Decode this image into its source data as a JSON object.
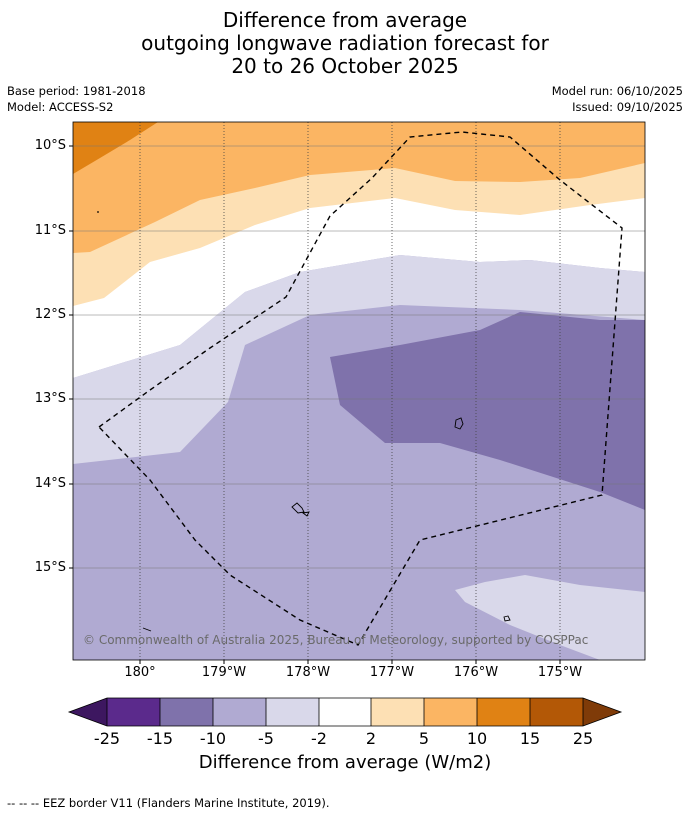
{
  "title": {
    "line1": "Difference from average",
    "line2": "outgoing longwave radiation forecast for",
    "line3": "20 to 26 October 2025"
  },
  "meta": {
    "base_period": "Base period: 1981-2018",
    "model": "Model: ACCESS-S2",
    "model_run": "Model run: 06/10/2025",
    "issued": "Issued: 09/10/2025"
  },
  "map": {
    "lat_labels": [
      "10°S",
      "11°S",
      "12°S",
      "13°S",
      "14°S",
      "15°S"
    ],
    "lon_labels": [
      "180°",
      "179°W",
      "178°W",
      "177°W",
      "176°W",
      "175°W"
    ],
    "copyright": "© Commonwealth of Australia 2025, Bureau of Meteorology, supported by COSPPac",
    "colors": {
      "n25": "#3d1760",
      "n15_25": "#5b2a8c",
      "n10_15": "#7f72ab",
      "n5_10": "#b0aad2",
      "n2_5": "#d9d8ea",
      "zero": "#ffffff",
      "p2_5": "#fde0b4",
      "p5_10": "#fbb563",
      "p10_15": "#e08214",
      "p15_25": "#b35806",
      "p25": "#7f3b08",
      "eez": "#000000"
    }
  },
  "colorbar": {
    "tick_labels": [
      "-25",
      "-15",
      "-10",
      "-5",
      "-2",
      "2",
      "5",
      "10",
      "15",
      "25"
    ],
    "title": "Difference from average (W/m2)"
  },
  "footnote": "--  --  -- EEZ border V11 (Flanders Marine Institute, 2019)."
}
